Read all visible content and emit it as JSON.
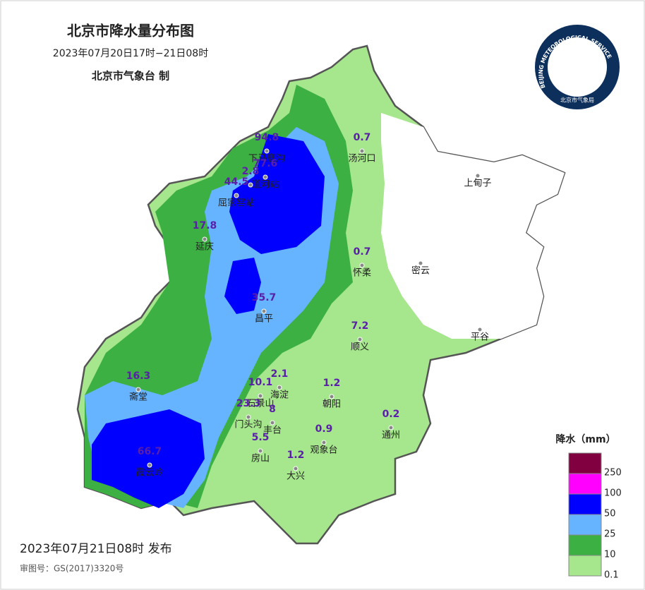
{
  "header": {
    "title": "北京市降水量分布图",
    "period": "2023年07月20日17时−21日08时",
    "agency": "北京市气象台 制"
  },
  "logo": {
    "ring": "BEIJING METEOROLOGICAL SERVICE",
    "name": "北京市气象局"
  },
  "value_color": "#5a1fa8",
  "stations": [
    {
      "name": "下马鹿沟",
      "value": "94.8",
      "color": "#e02020"
    },
    {
      "name": "道河站",
      "value": "77.6"
    },
    {
      "value": "2.8"
    },
    {
      "name": "屈家窑站",
      "value": "44.5"
    },
    {
      "name": "延庆",
      "value": "17.8"
    },
    {
      "name": "汤河口",
      "value": "0.7"
    },
    {
      "name": "上甸子"
    },
    {
      "name": "怀柔",
      "value": "0.7"
    },
    {
      "name": "密云"
    },
    {
      "name": "昌平",
      "value": "35.7"
    },
    {
      "name": "平谷"
    },
    {
      "name": "顺义",
      "value": "7.2"
    },
    {
      "name": "斋堂",
      "value": "16.3"
    },
    {
      "name": "海淀",
      "value": "2.1"
    },
    {
      "name": "石景山",
      "value": "10.1"
    },
    {
      "name": "朝阳",
      "value": "1.2"
    },
    {
      "name": "门头沟",
      "value": "23.3"
    },
    {
      "name": "丰台",
      "value": "8"
    },
    {
      "name": "通州",
      "value": "0.2"
    },
    {
      "name": "观象台",
      "value": "0.9"
    },
    {
      "name": "霞云岭",
      "value": "66.7"
    },
    {
      "name": "房山",
      "value": "5.5"
    },
    {
      "name": "大兴",
      "value": "1.2"
    }
  ],
  "legend": {
    "title": "降水（mm）",
    "colors": [
      "#800040",
      "#ff00ff",
      "#0000ff",
      "#66b3ff",
      "#3cb043",
      "#a6e68c"
    ],
    "levels": [
      250,
      100,
      50,
      25,
      10,
      0.1
    ]
  },
  "footer": {
    "issued": "2023年07月21日08时 发布",
    "approval": "审图号：GS(2017)3320号"
  }
}
